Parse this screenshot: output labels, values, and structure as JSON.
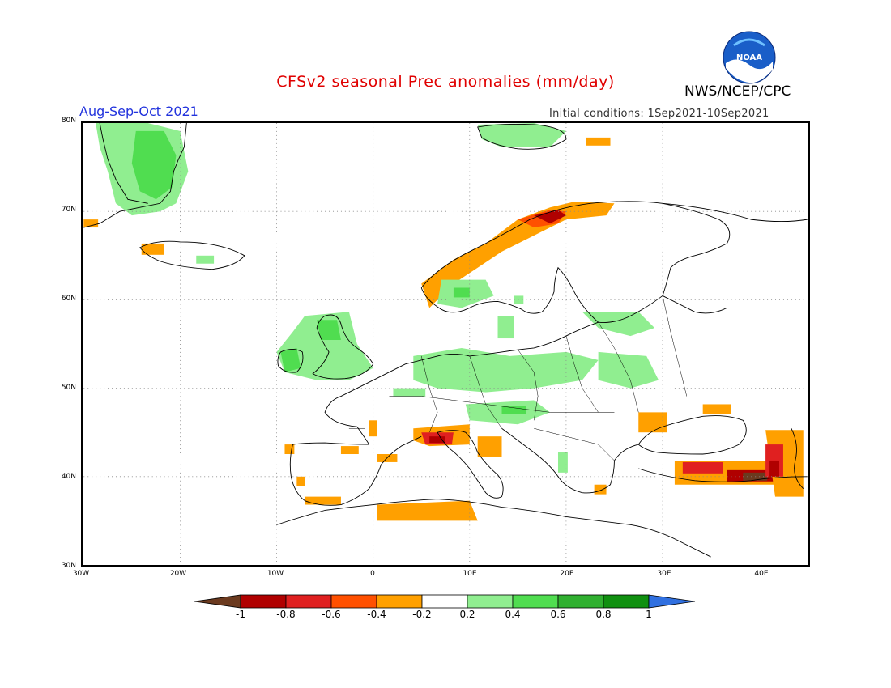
{
  "header": {
    "title": "CFSv2 seasonal Prec anomalies (mm/day)",
    "period": "Aug-Sep-Oct 2021",
    "initial_conditions": "Initial conditions: 1Sep2021-10Sep2021",
    "agency": "NWS/NCEP/CPC",
    "logo_text": "NOAA"
  },
  "map": {
    "lat_labels": [
      "80N",
      "70N",
      "60N",
      "50N",
      "40N",
      "30N"
    ],
    "lon_labels": [
      "30W",
      "20W",
      "10W",
      "0",
      "10E",
      "20E",
      "30E",
      "40E"
    ],
    "colors": {
      "sea": "#ffffff",
      "coast": "#000000",
      "grid": "#888888"
    }
  },
  "colorbar": {
    "labels": [
      "-1",
      "-0.8",
      "-0.6",
      "-0.4",
      "-0.2",
      "0.2",
      "0.4",
      "0.6",
      "0.8",
      "1"
    ],
    "colors": [
      "#6b3a1f",
      "#b00000",
      "#e02020",
      "#ff5000",
      "#ffa000",
      "#ffffff",
      "#90ee90",
      "#50dd50",
      "#30b030",
      "#109010",
      "#3070e0"
    ]
  }
}
